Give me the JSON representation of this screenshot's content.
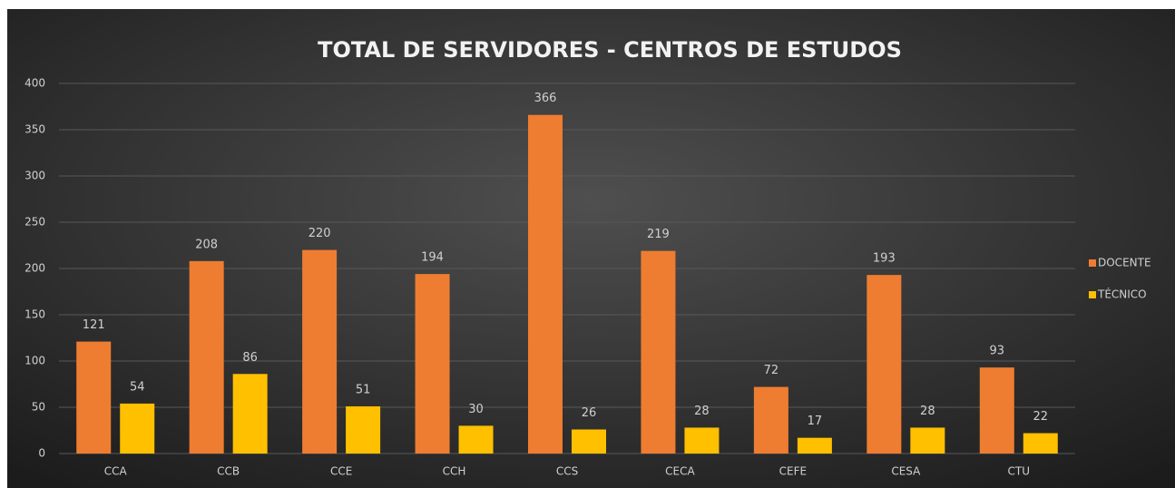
{
  "chart_data": {
    "type": "bar",
    "title": "TOTAL  DE SERVIDORES  - CENTROS  DE ESTUDOS",
    "categories": [
      "CCA",
      "CCB",
      "CCE",
      "CCH",
      "CCS",
      "CECA",
      "CEFE",
      "CESA",
      "CTU"
    ],
    "series": [
      {
        "name": "DOCENTE",
        "color": "#ee7d31",
        "values": [
          121,
          208,
          220,
          194,
          366,
          219,
          72,
          193,
          93
        ]
      },
      {
        "name": "TÉCNICO",
        "color": "#ffc000",
        "values": [
          54,
          86,
          51,
          30,
          26,
          28,
          17,
          28,
          22
        ]
      }
    ],
    "ylim": [
      0,
      400
    ],
    "yticks": [
      0,
      50,
      100,
      150,
      200,
      250,
      300,
      350,
      400
    ],
    "grid": true,
    "legend": "right"
  }
}
